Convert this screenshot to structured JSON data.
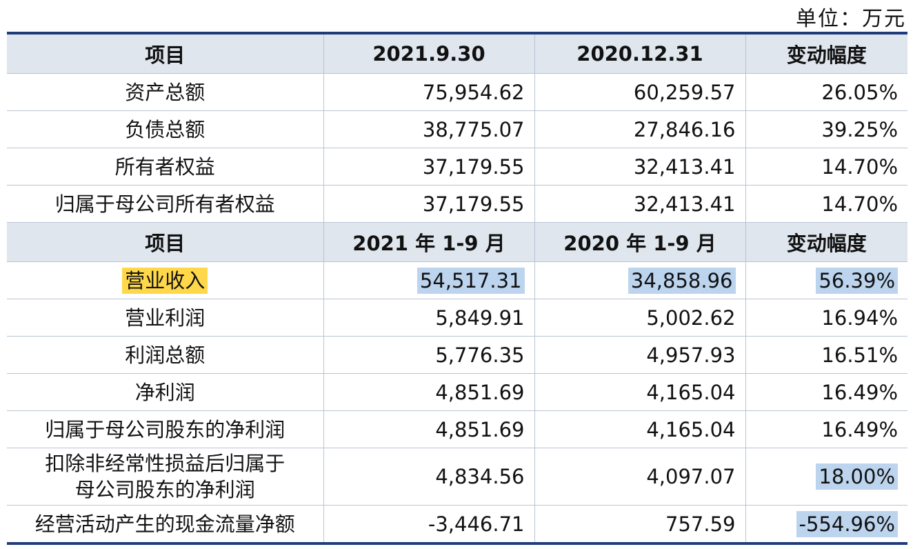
{
  "unit_label": "单位：万元",
  "header1": [
    "项目",
    "2021.9.30",
    "2020.12.31",
    "变动幅度"
  ],
  "header2": [
    "项目",
    "2021 年 1-9 月",
    "2020 年 1-9 月",
    "变动幅度"
  ],
  "section1": [
    {
      "item": "资产总额",
      "v1": "75,954.62",
      "v2": "60,259.57",
      "chg": "26.05%"
    },
    {
      "item": "负债总额",
      "v1": "38,775.07",
      "v2": "27,846.16",
      "chg": "39.25%"
    },
    {
      "item": "所有者权益",
      "v1": "37,179.55",
      "v2": "32,413.41",
      "chg": "14.70%"
    },
    {
      "item": "归属于母公司所有者权益",
      "v1": "37,179.55",
      "v2": "32,413.41",
      "chg": "14.70%"
    }
  ],
  "section2": [
    {
      "item": "营业收入",
      "v1": "54,517.31",
      "v2": "34,858.96",
      "chg": "56.39%"
    },
    {
      "item": "营业利润",
      "v1": "5,849.91",
      "v2": "5,002.62",
      "chg": "16.94%"
    },
    {
      "item": "利润总额",
      "v1": "5,776.35",
      "v2": "4,957.93",
      "chg": "16.51%"
    },
    {
      "item": "净利润",
      "v1": "4,851.69",
      "v2": "4,165.04",
      "chg": "16.49%"
    },
    {
      "item": "归属于母公司股东的净利润",
      "v1": "4,851.69",
      "v2": "4,165.04",
      "chg": "16.49%"
    },
    {
      "item_line1": "扣除非经常性损益后归属于",
      "item_line2": "母公司股东的净利润",
      "v1": "4,834.56",
      "v2": "4,097.07",
      "chg": "18.00%"
    },
    {
      "item": "经营活动产生的现金流量净额",
      "v1": "-3,446.71",
      "v2": "757.59",
      "chg": "-554.96%"
    }
  ],
  "colors": {
    "rule": "#1f3b7a",
    "header_bg": "#dfe6ee",
    "highlight_yellow": "#ffd84a",
    "highlight_blue": "#bcd4ee"
  }
}
